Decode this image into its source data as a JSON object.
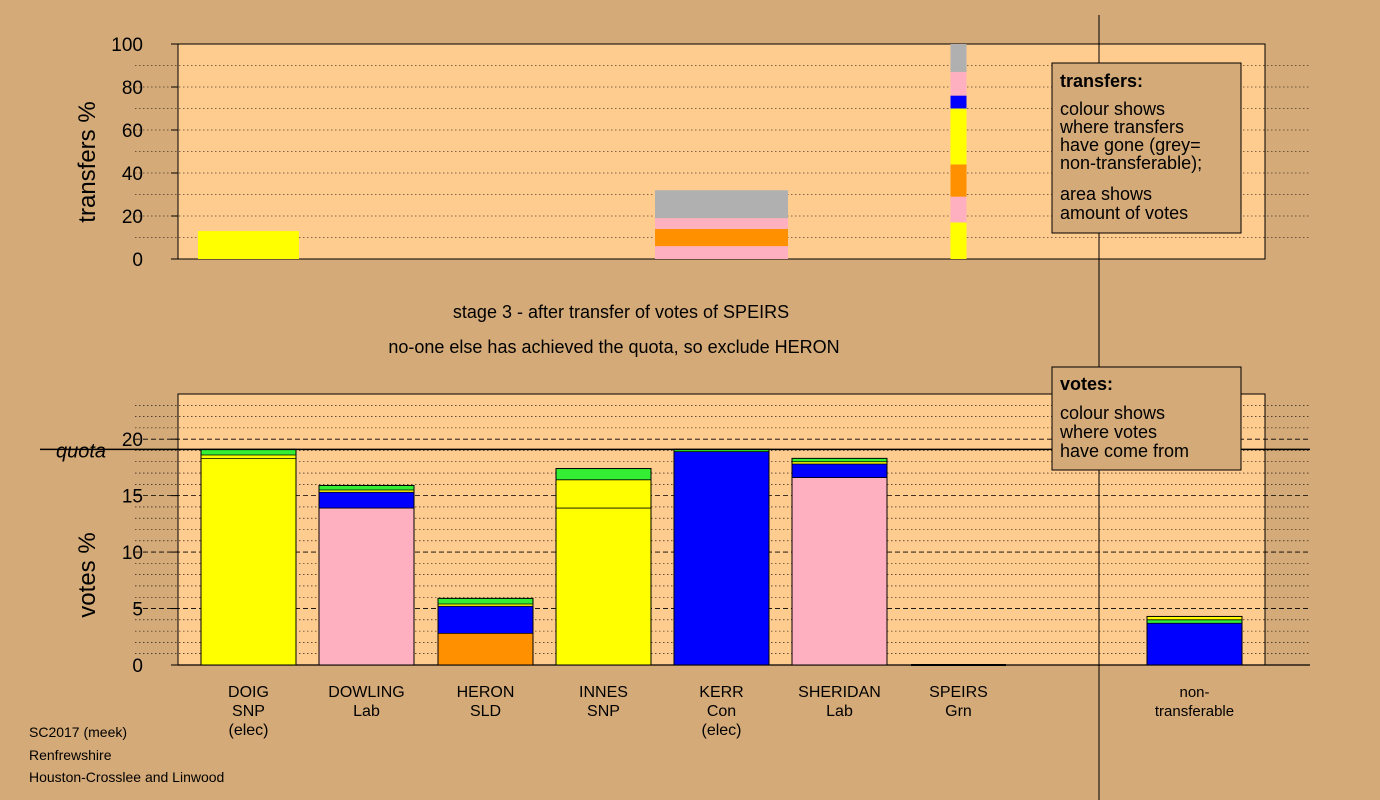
{
  "stage_text": {
    "line1": "stage 3 - after transfer of votes of SPEIRS",
    "line2": "no-one else has achieved the quota, so exclude HERON"
  },
  "footer": {
    "line1": "SC2017 (meek)",
    "line2": "Renfrewshire",
    "line3": "Houston-Crosslee and Linwood"
  },
  "colors": {
    "SNP": "#ffff00",
    "Lab": "#ffb0c0",
    "SLD": "#ff9000",
    "Con": "#0000ff",
    "Grn": "#33ee33",
    "nontransferable": "#b0b0b0",
    "panel": "#ffcc90",
    "background": "#d4aa78"
  },
  "legends": {
    "transfers": {
      "title": "transfers:",
      "lines1": [
        "colour shows",
        "where transfers",
        "have gone (grey=",
        "non-transferable);"
      ],
      "lines2": [
        "area shows",
        "amount of votes"
      ]
    },
    "votes": {
      "title": "votes:",
      "lines": [
        "colour shows",
        "where votes",
        "have come from"
      ]
    }
  },
  "chart_data": [
    {
      "type": "bar",
      "name": "transfers",
      "ylabel": "transfers %",
      "ylim": [
        0,
        100
      ],
      "yticks": [
        0,
        20,
        40,
        60,
        80,
        100
      ],
      "grid": "dotted every 10",
      "bars": [
        {
          "position": "DOIG",
          "width_share": 13,
          "segments": [
            {
              "party": "SNP",
              "from": 0,
              "to": 13
            }
          ]
        },
        {
          "position": "KERR",
          "width_share": 32,
          "segments": [
            {
              "party": "Lab",
              "from": 0,
              "to": 6
            },
            {
              "party": "SLD",
              "from": 6,
              "to": 14
            },
            {
              "party": "Lab",
              "from": 14,
              "to": 15
            },
            {
              "party": "Lab",
              "from": 15,
              "to": 19
            },
            {
              "party": "nontransferable",
              "from": 19,
              "to": 32
            }
          ]
        },
        {
          "position": "SPEIRS",
          "width_share": 100,
          "segments": [
            {
              "party": "SNP",
              "from": 0,
              "to": 17
            },
            {
              "party": "Lab",
              "from": 17,
              "to": 29
            },
            {
              "party": "SLD",
              "from": 29,
              "to": 44
            },
            {
              "party": "SNP",
              "from": 44,
              "to": 70
            },
            {
              "party": "Con",
              "from": 70,
              "to": 76
            },
            {
              "party": "Lab",
              "from": 76,
              "to": 87
            },
            {
              "party": "nontransferable",
              "from": 87,
              "to": 100
            }
          ]
        }
      ]
    },
    {
      "type": "bar",
      "name": "votes",
      "ylabel": "votes %",
      "ylim": [
        0,
        24
      ],
      "yticks": [
        0,
        5,
        10,
        15,
        20
      ],
      "quota": 19.1,
      "quota_label": "quota",
      "categories": [
        "DOIG",
        "DOWLING",
        "HERON",
        "INNES",
        "KERR",
        "SHERIDAN",
        "SPEIRS",
        "non-transferable"
      ],
      "category_labels": [
        [
          "DOIG",
          "SNP",
          "(elec)"
        ],
        [
          "DOWLING",
          "Lab"
        ],
        [
          "HERON",
          "SLD"
        ],
        [
          "INNES",
          "SNP"
        ],
        [
          "KERR",
          "Con",
          "(elec)"
        ],
        [
          "SHERIDAN",
          "Lab"
        ],
        [
          "SPEIRS",
          "Grn"
        ],
        [
          "non-",
          "transferable"
        ]
      ],
      "bars": [
        {
          "candidate": "DOIG",
          "segments": [
            {
              "party": "SNP",
              "from": 0,
              "to": 18.3
            },
            {
              "party": "SNP",
              "from": 18.3,
              "to": 18.6
            },
            {
              "party": "Grn",
              "from": 18.6,
              "to": 19.1
            }
          ]
        },
        {
          "candidate": "DOWLING",
          "segments": [
            {
              "party": "Lab",
              "from": 0,
              "to": 13.9
            },
            {
              "party": "Con",
              "from": 13.9,
              "to": 15.3
            },
            {
              "party": "SNP",
              "from": 15.3,
              "to": 15.5
            },
            {
              "party": "Grn",
              "from": 15.5,
              "to": 15.9
            }
          ]
        },
        {
          "candidate": "HERON",
          "segments": [
            {
              "party": "SLD",
              "from": 0,
              "to": 2.8
            },
            {
              "party": "Con",
              "from": 2.8,
              "to": 5.2
            },
            {
              "party": "SNP",
              "from": 5.2,
              "to": 5.4
            },
            {
              "party": "Grn",
              "from": 5.4,
              "to": 5.9
            }
          ]
        },
        {
          "candidate": "INNES",
          "segments": [
            {
              "party": "SNP",
              "from": 0,
              "to": 13.9
            },
            {
              "party": "SNP",
              "from": 13.9,
              "to": 16.4
            },
            {
              "party": "Grn",
              "from": 16.4,
              "to": 17.4
            }
          ]
        },
        {
          "candidate": "KERR",
          "segments": [
            {
              "party": "Con",
              "from": 0,
              "to": 18.9
            },
            {
              "party": "Grn",
              "from": 18.9,
              "to": 19.1
            }
          ]
        },
        {
          "candidate": "SHERIDAN",
          "segments": [
            {
              "party": "Lab",
              "from": 0,
              "to": 16.6
            },
            {
              "party": "Con",
              "from": 16.6,
              "to": 17.8
            },
            {
              "party": "SNP",
              "from": 17.8,
              "to": 18.0
            },
            {
              "party": "Grn",
              "from": 18.0,
              "to": 18.3
            }
          ]
        },
        {
          "candidate": "SPEIRS",
          "segments": []
        },
        {
          "candidate": "non-transferable",
          "segments": [
            {
              "party": "Con",
              "from": 0,
              "to": 3.7
            },
            {
              "party": "Grn",
              "from": 3.7,
              "to": 4.0
            },
            {
              "party": "SNP",
              "from": 4.0,
              "to": 4.3
            }
          ]
        }
      ]
    }
  ]
}
